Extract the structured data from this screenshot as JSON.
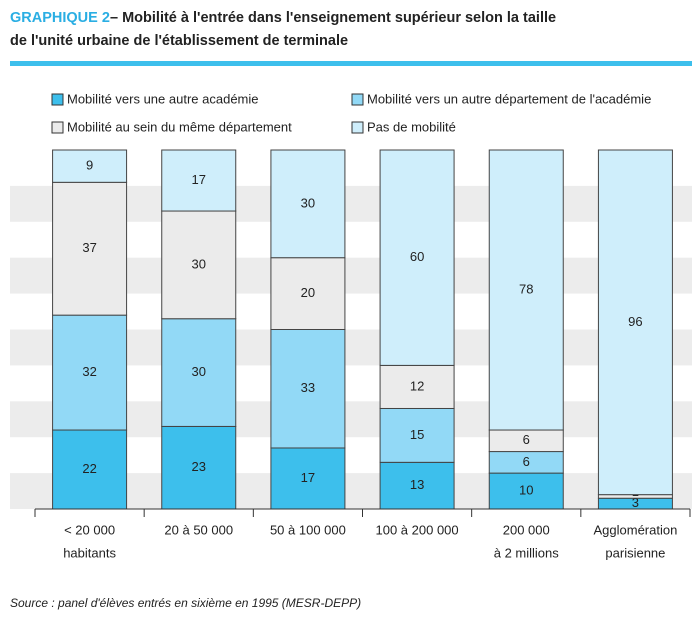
{
  "chart_data": {
    "type": "stacked_bar",
    "label": "GRAPHIQUE 2",
    "title": [
      "– Mobilité à l'entrée dans l'enseignement supérieur selon la taille",
      "de l'unité urbaine de l'établissement de terminale"
    ],
    "categories": [
      [
        "< 20 000",
        "habitants"
      ],
      [
        "20 à 50 000"
      ],
      [
        "50 à 100 000"
      ],
      [
        "100 à 200 000"
      ],
      [
        "200 000",
        "à 2 millions"
      ],
      [
        "Agglomération",
        "parisienne"
      ]
    ],
    "series": [
      {
        "name": "Mobilité vers une autre académie",
        "color": "#3dbfec",
        "values": [
          22,
          23,
          17,
          13,
          10,
          3
        ]
      },
      {
        "name": "Mobilité vers un autre département de l'académie",
        "color": "#92d9f6",
        "values": [
          32,
          30,
          33,
          15,
          6,
          0
        ]
      },
      {
        "name": "Mobilité au sein du même département",
        "color": "#ebebeb",
        "values": [
          37,
          30,
          20,
          12,
          6,
          1
        ]
      },
      {
        "name": "Pas de mobilité",
        "color": "#cfeefb",
        "values": [
          9,
          17,
          30,
          60,
          78,
          96
        ]
      }
    ],
    "ylim": [
      0,
      100
    ],
    "yticks": [
      0,
      10,
      20,
      30,
      40,
      50,
      60,
      70,
      80,
      90,
      100
    ],
    "grid": true,
    "source": "Source : panel d'élèves entrés en sixième en 1995 (MESR-DEPP)"
  }
}
